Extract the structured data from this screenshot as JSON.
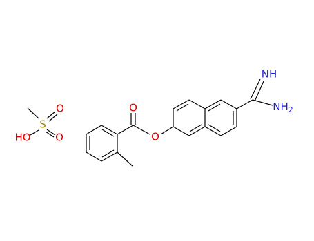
{
  "molecule": {
    "atoms": [
      {
        "label": "S"
      },
      {
        "label": "O"
      },
      {
        "label": "O"
      },
      {
        "label": "HO"
      },
      {
        "label": "O"
      },
      {
        "label": "O"
      },
      {
        "label": "NH"
      },
      {
        "label": "NH",
        "subscript": "2"
      }
    ]
  }
}
